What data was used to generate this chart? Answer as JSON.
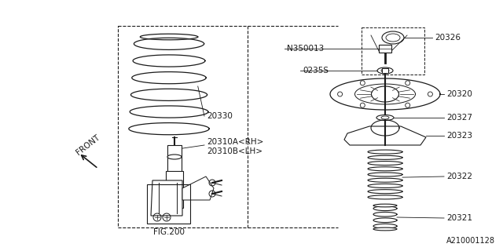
{
  "background_color": "#ffffff",
  "image_id": "A210001128",
  "fig200_label": "FIG.200",
  "front_label": "FRONT",
  "line_color": "#1a1a1a",
  "text_color": "#1a1a1a",
  "font_size": 7.5
}
